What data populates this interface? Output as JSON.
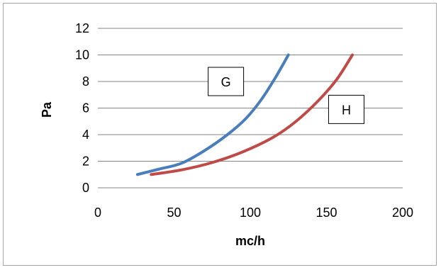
{
  "chart_data": {
    "type": "line",
    "xlabel": "mc/h",
    "ylabel": "Pa",
    "xlim": [
      0,
      200
    ],
    "ylim": [
      0,
      12
    ],
    "x_ticks": [
      0,
      50,
      100,
      150,
      200
    ],
    "y_ticks": [
      0,
      2,
      4,
      6,
      8,
      10,
      12
    ],
    "grid": "horizontal",
    "series": [
      {
        "name": "G",
        "color": "#4a7ebb",
        "x": [
          26,
          40,
          55,
          70,
          85,
          97,
          107,
          116,
          125
        ],
        "y": [
          1,
          1.4,
          1.85,
          2.8,
          4.0,
          5.2,
          6.6,
          8.2,
          10
        ]
      },
      {
        "name": "H",
        "color": "#be4b48",
        "x": [
          35,
          55,
          75,
          95,
          115,
          130,
          145,
          157,
          167
        ],
        "y": [
          1,
          1.35,
          1.9,
          2.7,
          3.8,
          5.0,
          6.6,
          8.2,
          10
        ]
      }
    ],
    "labels": [
      {
        "text": "G",
        "series": "G",
        "x": 84,
        "y": 8
      },
      {
        "text": "H",
        "series": "H",
        "x": 163,
        "y": 5.9
      }
    ]
  }
}
